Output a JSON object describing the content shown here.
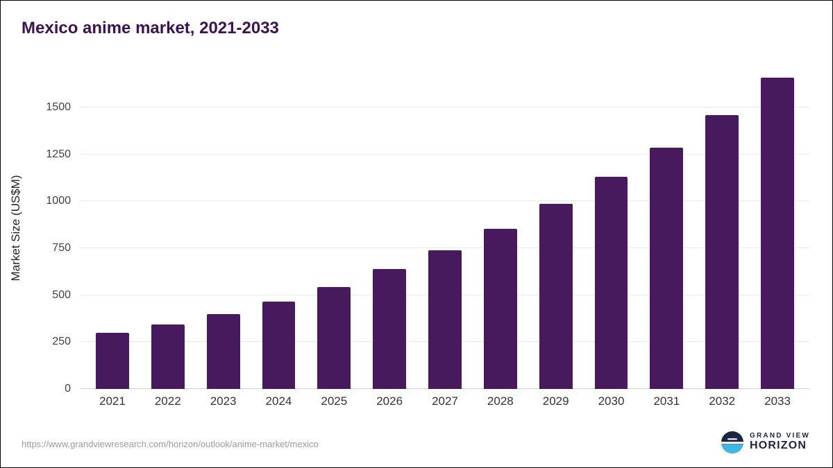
{
  "chart_data": {
    "type": "bar",
    "title": "Mexico anime market, 2021-2033",
    "categories": [
      "2021",
      "2022",
      "2023",
      "2024",
      "2025",
      "2026",
      "2027",
      "2028",
      "2029",
      "2030",
      "2031",
      "2032",
      "2033"
    ],
    "values": [
      300,
      345,
      400,
      465,
      545,
      640,
      740,
      855,
      985,
      1130,
      1285,
      1460,
      1660
    ],
    "xlabel": "",
    "ylabel": "Market Size (US$M)",
    "ylim": [
      0,
      1700
    ],
    "yticks": [
      0,
      250,
      500,
      750,
      1000,
      1250,
      1500
    ],
    "bar_color": "#461a5c",
    "grid": "horizontal-only",
    "legend": "none"
  },
  "footer": {
    "source_url": "https://www.grandviewresearch.com/horizon/outlook/anime-market/mexico"
  },
  "logo": {
    "line1": "GRAND VIEW",
    "line2": "HORIZON",
    "navy": "#1b2442",
    "light_blue": "#3db7e4"
  }
}
